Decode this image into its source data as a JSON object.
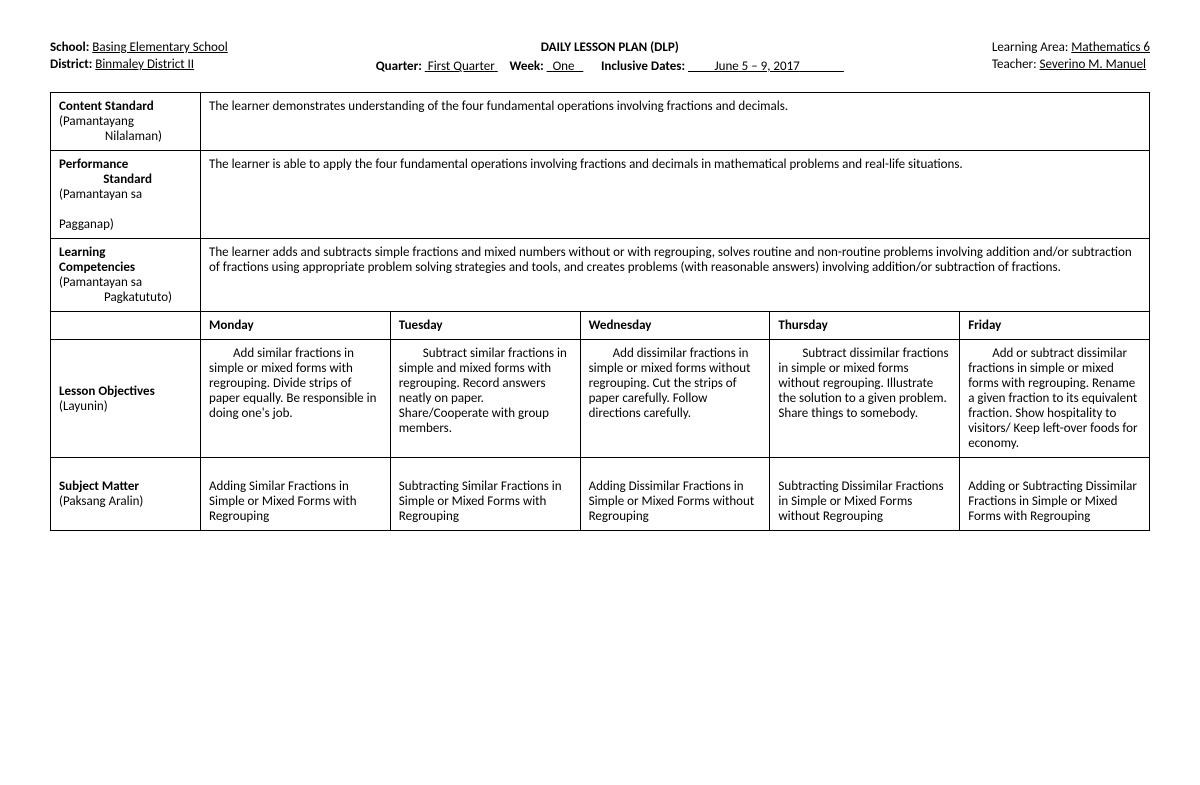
{
  "header": {
    "school_label": "School:",
    "school": "Basing Elementary School",
    "district_label": "District:",
    "district": "Binmaley District II",
    "title": "DAILY LESSON PLAN (DLP)",
    "quarter_label": "Quarter:",
    "quarter": "First Quarter",
    "week_label": "Week:",
    "week": "One",
    "dates_label": "Inclusive Dates:",
    "dates": "June 5 – 9, 2017",
    "area_label": "Learning Area:",
    "area": "Mathematics 6",
    "teacher_label": "Teacher:",
    "teacher": "Severino M. Manuel"
  },
  "rows": {
    "content_standard": {
      "label_main": "Content Standard",
      "label_sub1": "(Pamantayang",
      "label_sub2": "Nilalaman)",
      "text": "The learner demonstrates understanding of the four fundamental operations involving fractions and decimals."
    },
    "performance_standard": {
      "label_main": "Performance",
      "label_main2": "Standard",
      "label_sub1": "(Pamantayan sa",
      "label_sub2": "Pagganap)",
      "text": "The learner is able to apply the four fundamental operations involving fractions and decimals in mathematical problems and real-life situations."
    },
    "learning_competencies": {
      "label_main": "Learning",
      "label_main2": "Competencies",
      "label_sub1": "(Pamantayan sa",
      "label_sub2": "Pagkatututo)",
      "text": "The learner adds and subtracts simple fractions and mixed numbers without or with regrouping, solves routine and non-routine problems involving addition and/or subtraction of fractions using appropriate problem solving strategies and tools, and creates problems (with reasonable answers) involving addition/or subtraction of fractions."
    },
    "days": {
      "mon": "Monday",
      "tue": "Tuesday",
      "wed": "Wednesday",
      "thu": "Thursday",
      "fri": "Friday"
    },
    "objectives": {
      "label_main": "Lesson Objectives",
      "label_sub1": "(Layunin)",
      "mon": "Add similar fractions in simple or mixed forms with regrouping. Divide strips of paper equally. Be responsible in doing one's job.",
      "tue": "Subtract similar fractions in simple and mixed forms with regrouping. Record answers neatly on paper. Share/Cooperate with group members.",
      "wed": "Add dissimilar fractions in simple or mixed forms without regrouping. Cut the strips of paper carefully. Follow directions carefully.",
      "thu": "Subtract dissimilar fractions in simple or mixed forms without regrouping. Illustrate the solution to a given problem. Share things to somebody.",
      "fri": "Add or subtract dissimilar fractions in simple or mixed forms with regrouping. Rename a given fraction to its equivalent fraction. Show hospitality to visitors/ Keep left-over foods for economy."
    },
    "subject_matter": {
      "label_main": "Subject Matter",
      "label_sub1": "(Paksang Aralin)",
      "mon": "Adding Similar Fractions in Simple or Mixed Forms with Regrouping",
      "tue": "Subtracting Similar Fractions in Simple or Mixed Forms with Regrouping",
      "wed": "Adding Dissimilar Fractions in Simple or Mixed Forms without Regrouping",
      "thu": "Subtracting Dissimilar Fractions in Simple or Mixed Forms without Regrouping",
      "fri": "Adding or Subtracting Dissimilar Fractions in Simple or Mixed Forms with Regrouping"
    }
  }
}
